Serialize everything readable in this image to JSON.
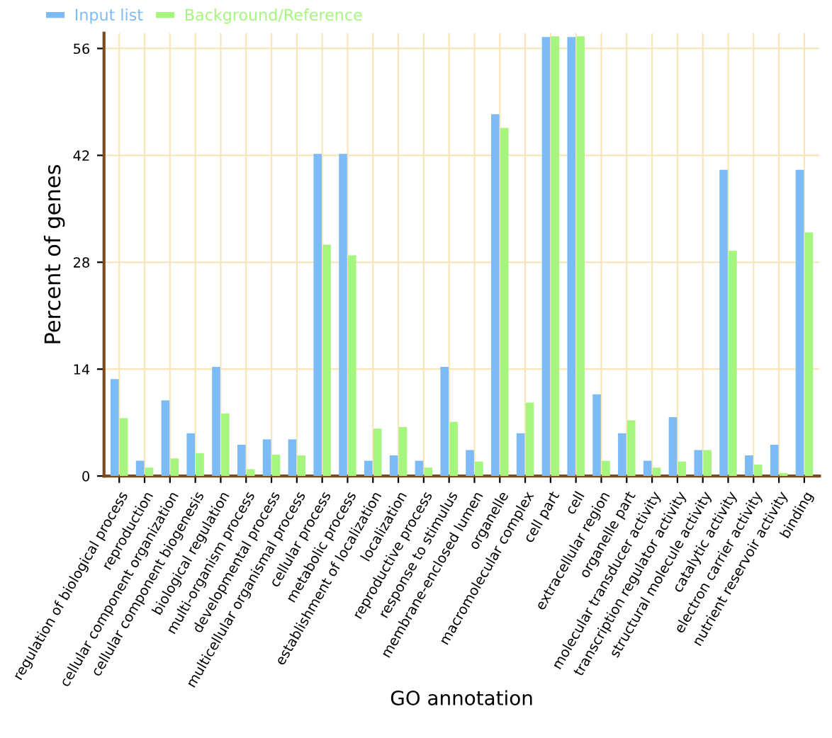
{
  "chart_data": {
    "type": "bar",
    "xlabel": "GO annotation",
    "ylabel": "Percent of genes",
    "categories": [
      "regulation of biological process",
      "reproduction",
      "cellular component organization",
      "cellular component biogenesis",
      "biological regulation",
      "multi-organism process",
      "developmental process",
      "multicellular organismal process",
      "cellular process",
      "metabolic process",
      "establishment of localization",
      "localization",
      "reproductive process",
      "response to stimulus",
      "membrane-enclosed lumen",
      "organelle",
      "macromolecular complex",
      "cell part",
      "cell",
      "extracellular region",
      "organelle part",
      "molecular transducer activity",
      "transcription regulator activity",
      "structural molecule activity",
      "catalytic activity",
      "electron carrier activity",
      "nutrient reservoir activity",
      "binding"
    ],
    "series": [
      {
        "name": "Input list",
        "color": "#7dbbf7",
        "values": [
          12.7,
          2.0,
          9.9,
          5.6,
          14.3,
          4.1,
          4.8,
          4.8,
          42.2,
          42.2,
          2.0,
          2.7,
          2.0,
          14.3,
          3.4,
          47.4,
          5.6,
          57.5,
          57.5,
          10.7,
          5.6,
          2.0,
          7.7,
          3.4,
          40.1,
          2.7,
          4.1,
          40.1
        ]
      },
      {
        "name": "Background/Reference",
        "color": "#a6f57e",
        "values": [
          7.6,
          1.1,
          2.3,
          3.0,
          8.2,
          0.9,
          2.8,
          2.7,
          30.3,
          28.9,
          6.2,
          6.4,
          1.1,
          7.1,
          1.9,
          45.6,
          9.6,
          57.6,
          57.6,
          2.0,
          7.3,
          1.1,
          1.9,
          3.4,
          29.5,
          1.5,
          0.4,
          31.9
        ]
      }
    ],
    "ylim": [
      0,
      58
    ],
    "yticks": [
      0,
      14,
      28,
      42,
      56
    ],
    "grid": true,
    "legend": "top left"
  }
}
